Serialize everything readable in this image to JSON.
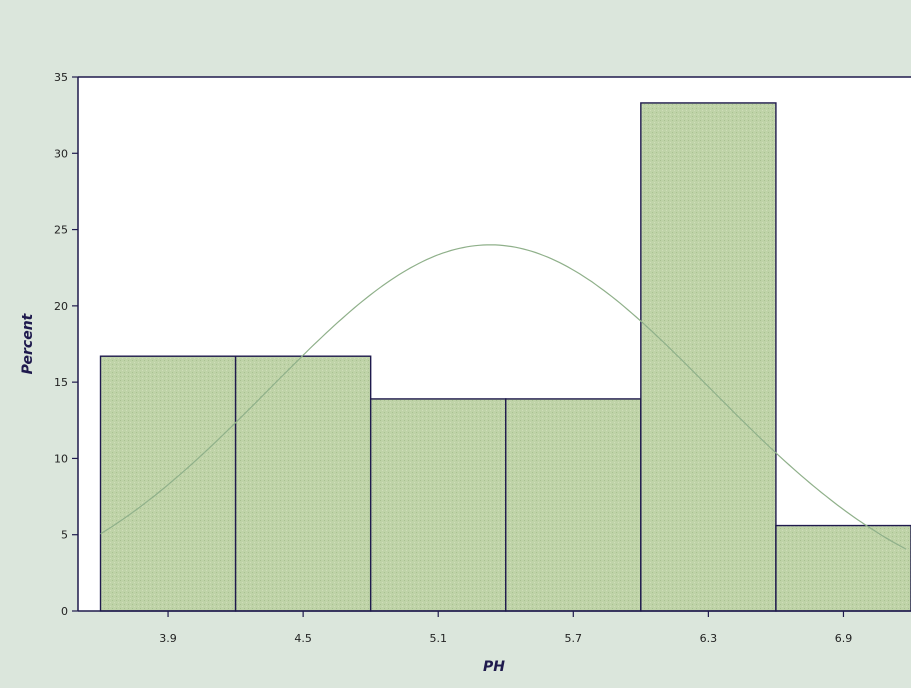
{
  "chart_data": {
    "type": "bar",
    "subtype": "histogram",
    "title": "",
    "xlabel": "PH",
    "ylabel": "Percent",
    "categories": [
      "3.9",
      "4.5",
      "5.1",
      "5.7",
      "6.3",
      "6.9"
    ],
    "bin_centers": [
      3.9,
      4.5,
      5.1,
      5.7,
      6.3,
      6.9
    ],
    "bin_width": 0.6,
    "values": [
      16.7,
      16.7,
      13.9,
      13.9,
      33.3,
      5.6
    ],
    "xlim": [
      3.5,
      7.2
    ],
    "ylim": [
      0,
      35
    ],
    "yticks": [
      0,
      5,
      10,
      15,
      20,
      25,
      30,
      35
    ],
    "grid": false,
    "overlay": {
      "type": "normal-density-curve",
      "mean": 5.33,
      "sd": 0.98,
      "peak_percent": 24
    },
    "colors": {
      "bar_fill": "#bfd3a8",
      "bar_stroke": "#1f1a4d",
      "curve": "#8fb08a",
      "frame": "#1f1a4d",
      "background": "#dbe6dc",
      "plot_background": "#ffffff"
    }
  }
}
